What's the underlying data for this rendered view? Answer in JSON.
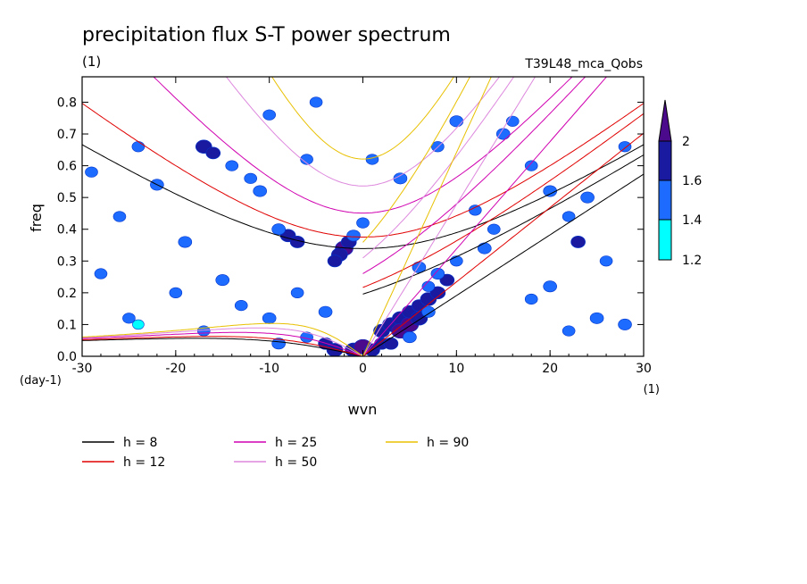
{
  "chart_data": {
    "type": "heatmap",
    "title": "precipitation flux S-T power spectrum",
    "subtitle_left": "(1)",
    "subtitle_right": "T39L48_mca_Qobs",
    "xlabel": "wvn",
    "ylabel": "freq",
    "x_unit": "(1)",
    "y_unit": "(day-1)",
    "xlim": [
      -30,
      30
    ],
    "ylim": [
      0,
      0.88
    ],
    "x_ticks": [
      -30,
      -20,
      -10,
      0,
      10,
      20,
      30
    ],
    "x_tick_labels": [
      "-30",
      "-20",
      "-10",
      "0",
      "10",
      "20",
      "30"
    ],
    "y_ticks": [
      0,
      0.1,
      0.2,
      0.3,
      0.4,
      0.5,
      0.6,
      0.7,
      0.8
    ],
    "y_tick_labels": [
      "0.0",
      "0.1",
      "0.2",
      "0.3",
      "0.4",
      "0.5",
      "0.6",
      "0.7",
      "0.8"
    ],
    "colorbar": {
      "levels": [
        1.2,
        1.4,
        1.6,
        2
      ],
      "labels": [
        "1.2",
        "1.4",
        "1.6",
        "2"
      ],
      "colors": [
        "#00ffff",
        "#1e6cff",
        "#1a1aa0",
        "#4b0a8c"
      ]
    },
    "dispersion_curves": [
      {
        "name": "h =  8",
        "h": 8,
        "color": "#000000"
      },
      {
        "name": "h = 12",
        "h": 12,
        "color": "#e00000"
      },
      {
        "name": "h = 25",
        "h": 25,
        "color": "#d000b0"
      },
      {
        "name": "h = 50",
        "h": 50,
        "color": "#dd88dd"
      },
      {
        "name": "h = 90",
        "h": 90,
        "color": "#e8c000"
      }
    ],
    "spectrum_cells": [
      {
        "x": -2,
        "y": 0.34,
        "v": 2.0
      },
      {
        "x": -2.5,
        "y": 0.32,
        "v": 1.8
      },
      {
        "x": -1.5,
        "y": 0.36,
        "v": 1.7
      },
      {
        "x": -3,
        "y": 0.3,
        "v": 1.6
      },
      {
        "x": -1,
        "y": 0.38,
        "v": 1.5
      },
      {
        "x": 0,
        "y": 0.42,
        "v": 1.4
      },
      {
        "x": -8,
        "y": 0.38,
        "v": 1.7
      },
      {
        "x": -7,
        "y": 0.36,
        "v": 1.6
      },
      {
        "x": -9,
        "y": 0.4,
        "v": 1.5
      },
      {
        "x": -17,
        "y": 0.66,
        "v": 1.8
      },
      {
        "x": -16,
        "y": 0.64,
        "v": 1.6
      },
      {
        "x": -14,
        "y": 0.6,
        "v": 1.4
      },
      {
        "x": -12,
        "y": 0.56,
        "v": 1.4
      },
      {
        "x": -11,
        "y": 0.52,
        "v": 1.5
      },
      {
        "x": -6,
        "y": 0.62,
        "v": 1.4
      },
      {
        "x": -25,
        "y": 0.12,
        "v": 1.4
      },
      {
        "x": -24,
        "y": 0.1,
        "v": 1.3
      },
      {
        "x": -17,
        "y": 0.08,
        "v": 1.4
      },
      {
        "x": -9,
        "y": 0.04,
        "v": 1.5
      },
      {
        "x": -6,
        "y": 0.06,
        "v": 1.4
      },
      {
        "x": -4,
        "y": 0.04,
        "v": 1.6
      },
      {
        "x": -3,
        "y": 0.02,
        "v": 1.8
      },
      {
        "x": -1,
        "y": 0.02,
        "v": 1.9
      },
      {
        "x": 0,
        "y": 0.03,
        "v": 2.0
      },
      {
        "x": 1,
        "y": 0.02,
        "v": 1.7
      },
      {
        "x": 2,
        "y": 0.04,
        "v": 1.6
      },
      {
        "x": 2,
        "y": 0.08,
        "v": 1.8
      },
      {
        "x": 3,
        "y": 0.1,
        "v": 1.9
      },
      {
        "x": 4,
        "y": 0.12,
        "v": 1.8
      },
      {
        "x": 4,
        "y": 0.08,
        "v": 2.0
      },
      {
        "x": 5,
        "y": 0.1,
        "v": 2.0
      },
      {
        "x": 5,
        "y": 0.14,
        "v": 1.7
      },
      {
        "x": 6,
        "y": 0.12,
        "v": 1.9
      },
      {
        "x": 6,
        "y": 0.16,
        "v": 1.6
      },
      {
        "x": 7,
        "y": 0.18,
        "v": 1.8
      },
      {
        "x": 7,
        "y": 0.14,
        "v": 1.5
      },
      {
        "x": 8,
        "y": 0.2,
        "v": 1.7
      },
      {
        "x": 9,
        "y": 0.24,
        "v": 1.6
      },
      {
        "x": 8,
        "y": 0.26,
        "v": 1.5
      },
      {
        "x": 3,
        "y": 0.04,
        "v": 1.6
      },
      {
        "x": 5,
        "y": 0.06,
        "v": 1.5
      },
      {
        "x": 7,
        "y": 0.22,
        "v": 1.4
      },
      {
        "x": 10,
        "y": 0.3,
        "v": 1.4
      },
      {
        "x": 6,
        "y": 0.28,
        "v": 1.5
      },
      {
        "x": 13,
        "y": 0.34,
        "v": 1.5
      },
      {
        "x": 14,
        "y": 0.4,
        "v": 1.4
      },
      {
        "x": 12,
        "y": 0.46,
        "v": 1.4
      },
      {
        "x": 15,
        "y": 0.7,
        "v": 1.5
      },
      {
        "x": 16,
        "y": 0.74,
        "v": 1.4
      },
      {
        "x": 18,
        "y": 0.6,
        "v": 1.4
      },
      {
        "x": 20,
        "y": 0.52,
        "v": 1.5
      },
      {
        "x": 22,
        "y": 0.44,
        "v": 1.4
      },
      {
        "x": 24,
        "y": 0.5,
        "v": 1.5
      },
      {
        "x": 23,
        "y": 0.36,
        "v": 1.6
      },
      {
        "x": 26,
        "y": 0.3,
        "v": 1.4
      },
      {
        "x": 20,
        "y": 0.22,
        "v": 1.5
      },
      {
        "x": 18,
        "y": 0.18,
        "v": 1.4
      },
      {
        "x": 25,
        "y": 0.12,
        "v": 1.5
      },
      {
        "x": 22,
        "y": 0.08,
        "v": 1.4
      },
      {
        "x": -20,
        "y": 0.2,
        "v": 1.4
      },
      {
        "x": -15,
        "y": 0.24,
        "v": 1.5
      },
      {
        "x": -13,
        "y": 0.16,
        "v": 1.4
      },
      {
        "x": -10,
        "y": 0.12,
        "v": 1.5
      },
      {
        "x": -7,
        "y": 0.2,
        "v": 1.4
      },
      {
        "x": -4,
        "y": 0.14,
        "v": 1.5
      },
      {
        "x": -22,
        "y": 0.54,
        "v": 1.5
      },
      {
        "x": -24,
        "y": 0.66,
        "v": 1.4
      },
      {
        "x": -26,
        "y": 0.44,
        "v": 1.4
      },
      {
        "x": -19,
        "y": 0.36,
        "v": 1.5
      },
      {
        "x": -5,
        "y": 0.8,
        "v": 1.4
      },
      {
        "x": -10,
        "y": 0.76,
        "v": 1.4
      },
      {
        "x": 1,
        "y": 0.62,
        "v": 1.4
      },
      {
        "x": 4,
        "y": 0.56,
        "v": 1.5
      },
      {
        "x": 8,
        "y": 0.66,
        "v": 1.4
      },
      {
        "x": 10,
        "y": 0.74,
        "v": 1.5
      },
      {
        "x": -28,
        "y": 0.26,
        "v": 1.4
      },
      {
        "x": 28,
        "y": 0.66,
        "v": 1.4
      },
      {
        "x": 28,
        "y": 0.1,
        "v": 1.5
      },
      {
        "x": -29,
        "y": 0.58,
        "v": 1.4
      }
    ]
  }
}
